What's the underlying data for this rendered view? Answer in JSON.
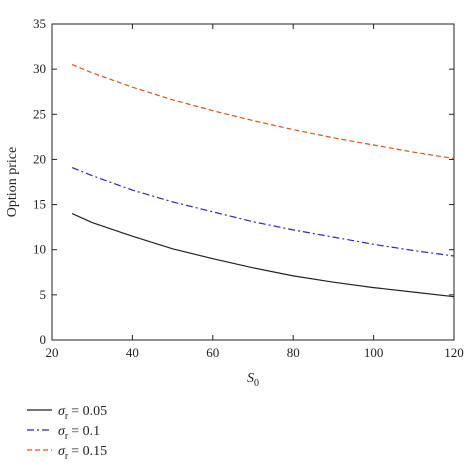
{
  "chart_data": {
    "type": "line",
    "xlabel": "S",
    "xlabel_subscript": "0",
    "ylabel": "Option price",
    "xlim": [
      20,
      120
    ],
    "ylim": [
      0,
      35
    ],
    "x_ticks": [
      20,
      40,
      60,
      80,
      100,
      120
    ],
    "y_ticks": [
      0,
      5,
      10,
      15,
      20,
      25,
      30,
      35
    ],
    "grid": false,
    "legend_position": "bottom-left, below plot",
    "legend_symbol": "σ",
    "legend_symbol_subscript": "r",
    "x": [
      25,
      30,
      40,
      50,
      60,
      70,
      80,
      90,
      100,
      110,
      120
    ],
    "series": [
      {
        "legend_value": "= 0.05",
        "color": "#222222",
        "dash": "solid",
        "values": [
          14.0,
          13.0,
          11.5,
          10.1,
          9.0,
          8.0,
          7.1,
          6.4,
          5.8,
          5.3,
          4.8
        ]
      },
      {
        "legend_value": "= 0.1",
        "color": "#2b2ba8",
        "dash": "dashdot",
        "values": [
          19.1,
          18.2,
          16.6,
          15.3,
          14.2,
          13.1,
          12.2,
          11.4,
          10.6,
          9.9,
          9.3
        ]
      },
      {
        "legend_value": "= 0.15",
        "color": "#d9541e",
        "dash": "dashed",
        "values": [
          30.5,
          29.6,
          28.0,
          26.6,
          25.4,
          24.3,
          23.3,
          22.4,
          21.6,
          20.8,
          20.1
        ]
      }
    ]
  }
}
